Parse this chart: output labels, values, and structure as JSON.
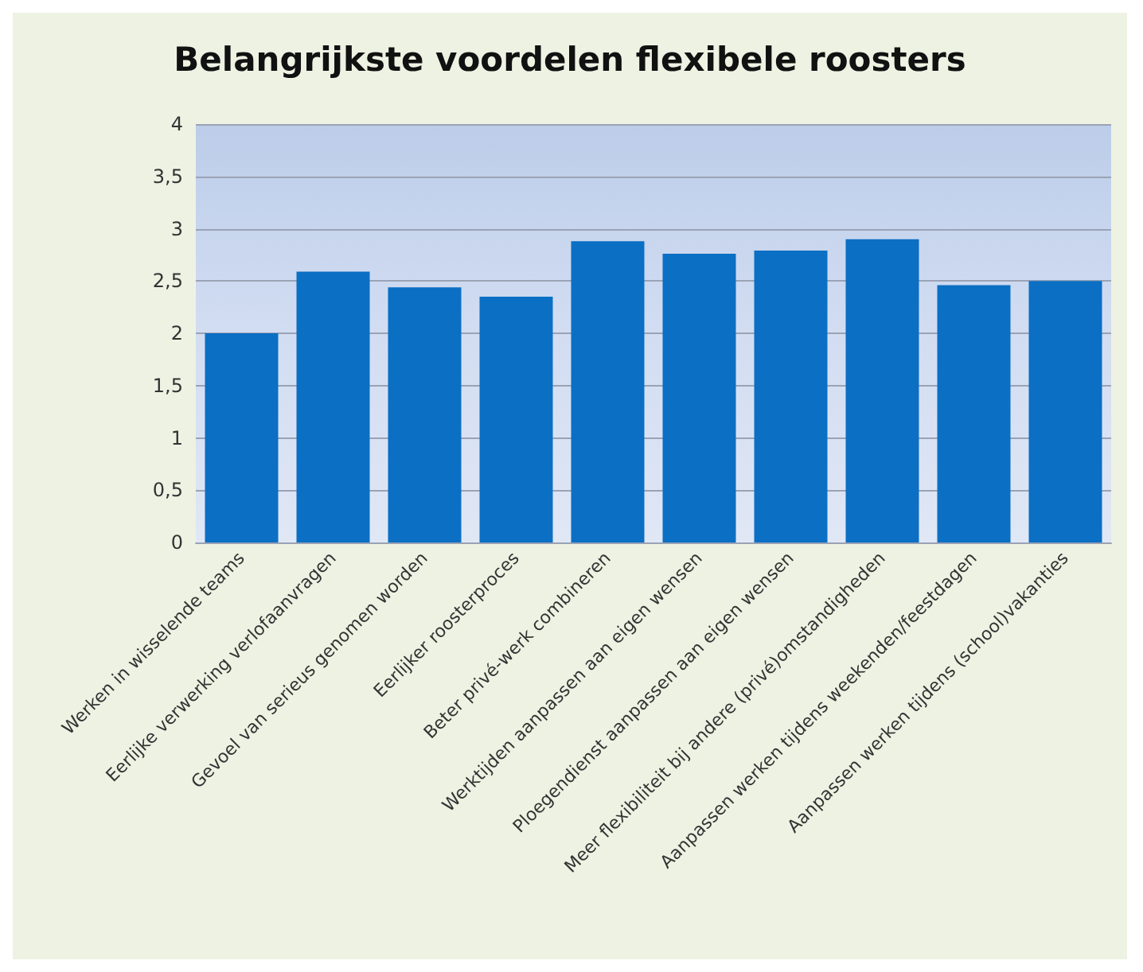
{
  "chart_data": {
    "type": "bar",
    "title": "Belangrijkste voordelen flexibele roosters",
    "categories": [
      "Werken in wisselende teams",
      "Eerlijke verwerking verlofaanvragen",
      "Gevoel van serieus genomen worden",
      "Eerlijker roosterproces",
      "Beter privé-werk combineren",
      "Werktijden aanpassen aan eigen wensen",
      "Ploegendienst aanpassen aan eigen wensen",
      "Meer flexibiliteit bij andere (privé)omstandigheden",
      "Aanpassen werken tijdens weekenden/feestdagen",
      "Aanpassen werken tijdens (school)vakanties"
    ],
    "values": [
      2.0,
      2.59,
      2.44,
      2.35,
      2.88,
      2.76,
      2.79,
      2.9,
      2.46,
      2.5
    ],
    "color": "#0b6fc4",
    "ylim": [
      0,
      4
    ],
    "yticks": [
      0,
      {
        "value": 0.5,
        "label": "0,5"
      },
      1,
      {
        "value": 1.5,
        "label": "1,5"
      },
      2,
      {
        "value": 2.5,
        "label": "2,5"
      },
      3,
      {
        "value": 3.5,
        "label": "3,5"
      },
      4
    ],
    "grid": "y"
  }
}
